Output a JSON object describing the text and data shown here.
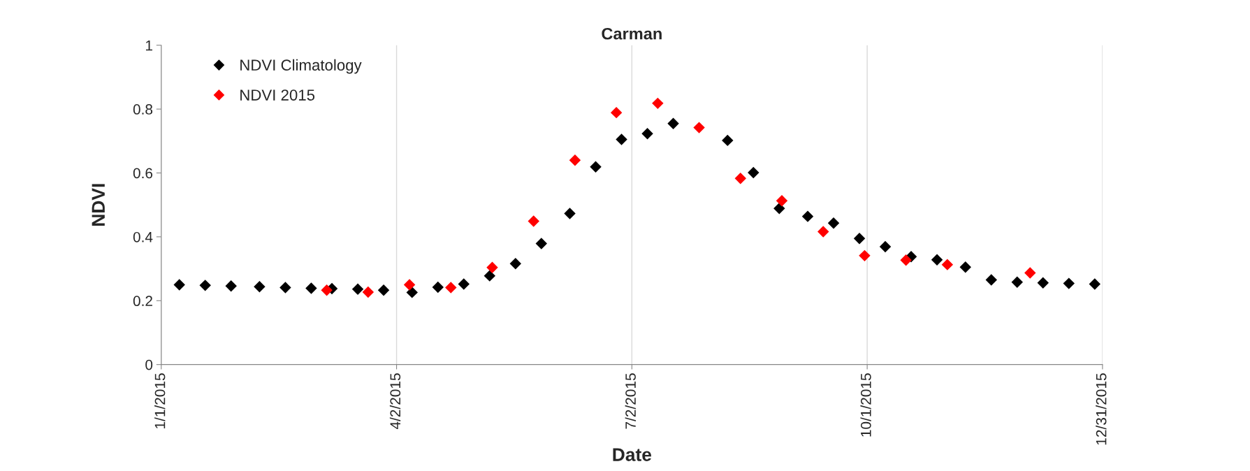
{
  "chart_data": {
    "type": "scatter",
    "title": "Carman",
    "xlabel": "Date",
    "ylabel": "NDVI",
    "xlim": [
      "2015-01-01",
      "2015-12-31"
    ],
    "xticks": [
      {
        "value": "2015-01-01",
        "label": "1/1/2015"
      },
      {
        "value": "2015-04-02",
        "label": "4/2/2015"
      },
      {
        "value": "2015-07-02",
        "label": "7/2/2015"
      },
      {
        "value": "2015-10-01",
        "label": "10/1/2015"
      },
      {
        "value": "2015-12-31",
        "label": "12/31/2015"
      }
    ],
    "ylim": [
      0,
      1
    ],
    "yticks": [
      0,
      0.2,
      0.4,
      0.6,
      0.8,
      1
    ],
    "grid": "x",
    "legend": "top left",
    "marker": "diamond",
    "series": [
      {
        "name": "NDVI Climatology",
        "color": "#000000",
        "x": [
          "2015-01-08",
          "2015-01-18",
          "2015-01-28",
          "2015-02-08",
          "2015-02-18",
          "2015-02-28",
          "2015-03-08",
          "2015-03-18",
          "2015-03-28",
          "2015-04-08",
          "2015-04-18",
          "2015-04-28",
          "2015-05-08",
          "2015-05-18",
          "2015-05-28",
          "2015-06-08",
          "2015-06-18",
          "2015-06-28",
          "2015-07-08",
          "2015-07-18",
          "2015-07-28",
          "2015-08-08",
          "2015-08-18",
          "2015-08-28",
          "2015-09-08",
          "2015-09-18",
          "2015-09-28",
          "2015-10-08",
          "2015-10-18",
          "2015-10-28",
          "2015-11-08",
          "2015-11-18",
          "2015-11-28",
          "2015-12-08",
          "2015-12-18",
          "2015-12-28"
        ],
        "values": [
          0.25,
          0.248,
          0.246,
          0.244,
          0.241,
          0.239,
          0.238,
          0.236,
          0.233,
          0.226,
          0.242,
          0.252,
          0.278,
          0.316,
          0.379,
          0.473,
          0.619,
          0.705,
          0.723,
          0.755,
          null,
          0.702,
          0.601,
          0.489,
          0.464,
          0.443,
          0.395,
          0.369,
          0.338,
          0.328,
          0.305,
          0.265,
          0.258,
          0.256,
          0.254,
          0.252
        ]
      },
      {
        "name": "NDVI 2015",
        "color": "#ff0000",
        "x": [
          "2015-03-06",
          "2015-03-22",
          "2015-04-07",
          "2015-04-23",
          "2015-05-09",
          "2015-05-25",
          "2015-06-10",
          "2015-06-26",
          "2015-07-12",
          "2015-07-28",
          "2015-08-13",
          "2015-08-29",
          "2015-09-14",
          "2015-09-30",
          "2015-10-16",
          "2015-11-01",
          "2015-12-03"
        ],
        "values": [
          0.233,
          0.227,
          0.25,
          0.241,
          0.304,
          0.449,
          0.64,
          0.789,
          0.818,
          0.742,
          0.583,
          0.513,
          0.416,
          0.341,
          0.327,
          0.313,
          0.287
        ]
      }
    ]
  }
}
